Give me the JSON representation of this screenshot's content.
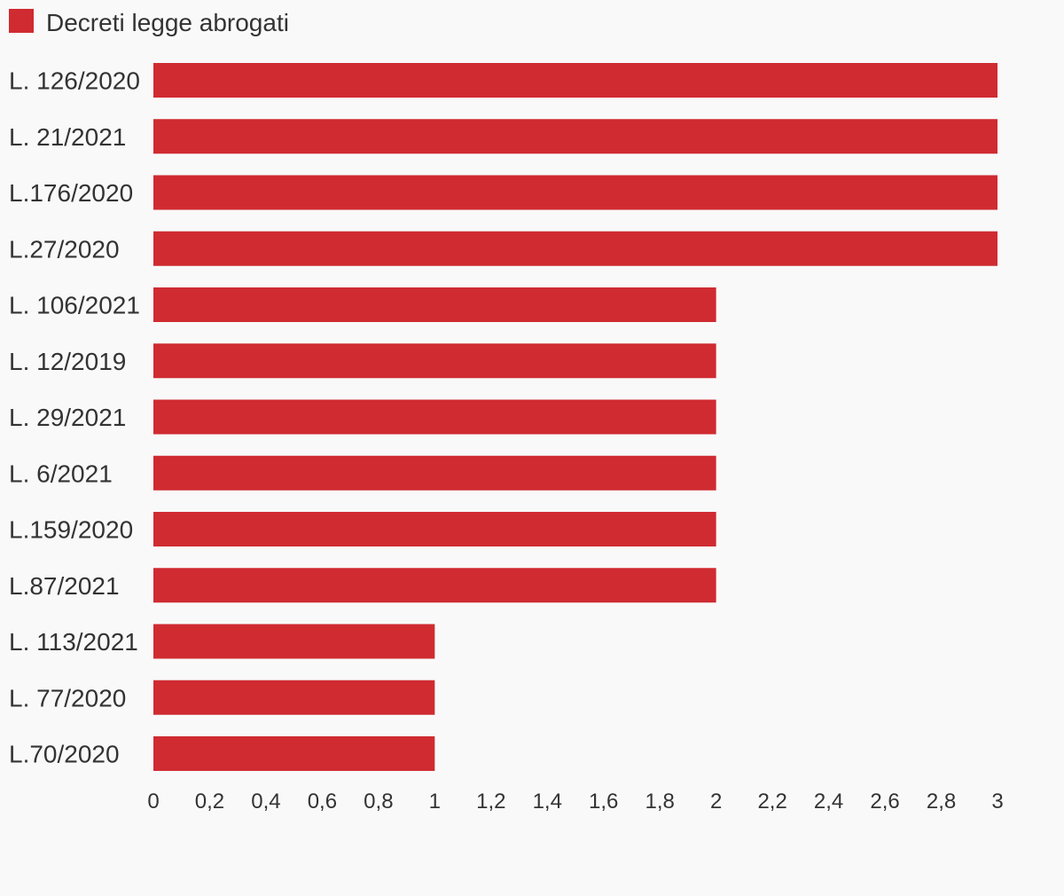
{
  "colors": {
    "bar": "#cf2b31",
    "text": "#333333",
    "background": "#f9f9f9"
  },
  "legend": {
    "label": "Decreti legge abrogati"
  },
  "chart_data": {
    "type": "bar",
    "orientation": "horizontal",
    "title": "",
    "xlabel": "",
    "ylabel": "",
    "grid": false,
    "legend_position": "top-left",
    "xlim": [
      0,
      3
    ],
    "categories": [
      "L. 126/2020",
      "L. 21/2021",
      "L.176/2020",
      "L.27/2020",
      "L. 106/2021",
      "L. 12/2019",
      "L. 29/2021",
      "L. 6/2021",
      "L.159/2020",
      "L.87/2021",
      "L. 113/2021",
      "L. 77/2020",
      "L.70/2020"
    ],
    "series": [
      {
        "name": "Decreti legge abrogati",
        "values": [
          3,
          3,
          3,
          3,
          2,
          2,
          2,
          2,
          2,
          2,
          1,
          1,
          1
        ]
      }
    ],
    "x_ticks": [
      0,
      0.2,
      0.4,
      0.6,
      0.8,
      1,
      1.2,
      1.4,
      1.6,
      1.8,
      2,
      2.2,
      2.4,
      2.6,
      2.8,
      3
    ],
    "x_tick_labels": [
      "0",
      "0,2",
      "0,4",
      "0,6",
      "0,8",
      "1",
      "1,2",
      "1,4",
      "1,6",
      "1,8",
      "2",
      "2,2",
      "2,4",
      "2,6",
      "2,8",
      "3"
    ]
  }
}
